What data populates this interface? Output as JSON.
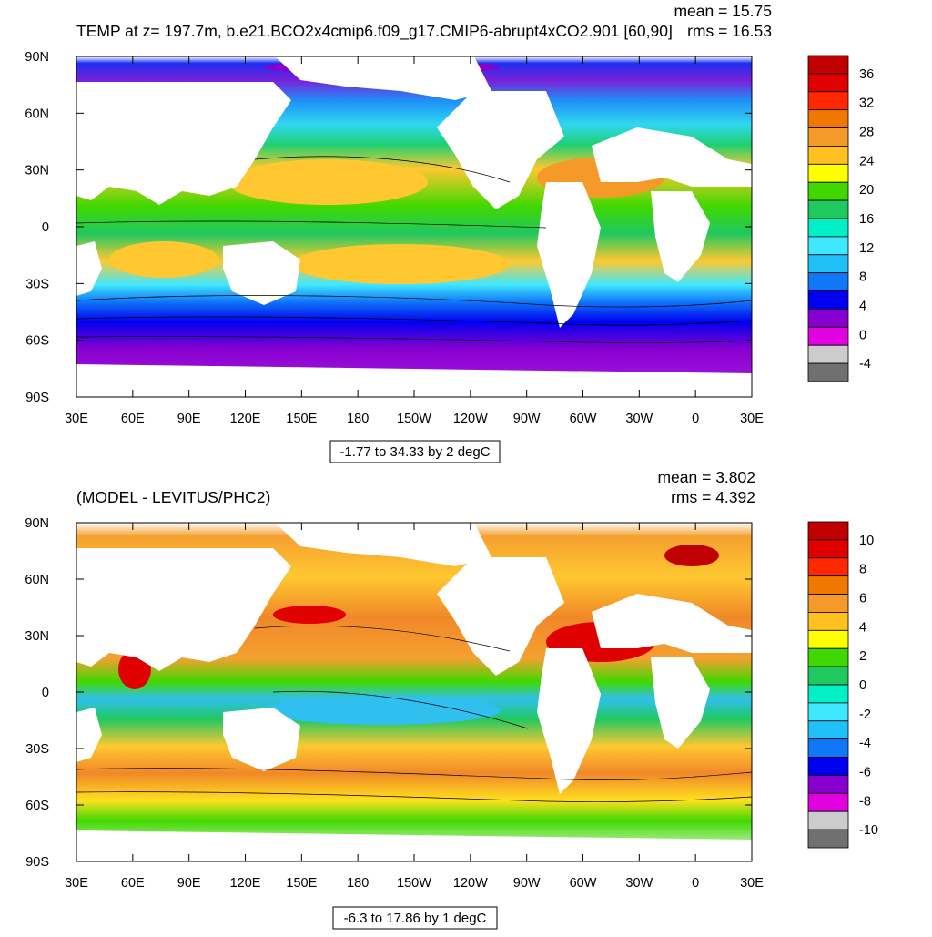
{
  "panels": [
    {
      "title": "TEMP at z= 197.7m, b.e21.BCO2x4cmip6.f09_g17.CMIP6-abrupt4xCO2.901 [60,90]",
      "mean_text": "mean = 15.75",
      "rms_text": "rms = 16.53",
      "contour_info": "-1.77 to 34.33 by 2 degC",
      "colorbar_labels": [
        "36",
        "32",
        "28",
        "24",
        "20",
        "16",
        "12",
        "8",
        "4",
        "0",
        "-4"
      ],
      "colorbar_colors": [
        "#c00000",
        "#e00000",
        "#ff2800",
        "#f07800",
        "#f59a28",
        "#ffc020",
        "#ffff00",
        "#40d800",
        "#20c860",
        "#00f0c8",
        "#40e8ff",
        "#20c0f8",
        "#1078f8",
        "#0000f0",
        "#8800d0",
        "#e000e0",
        "#cccccc",
        "#707070"
      ]
    },
    {
      "title": "(MODEL - LEVITUS/PHC2)",
      "mean_text": "mean = 3.802",
      "rms_text": "rms = 4.392",
      "contour_info": "-6.3 to 17.86 by 1 degC",
      "colorbar_labels": [
        "10",
        "8",
        "6",
        "4",
        "2",
        "0",
        "-2",
        "-4",
        "-6",
        "-8",
        "-10"
      ],
      "colorbar_colors": [
        "#c00000",
        "#e00000",
        "#ff2800",
        "#f07800",
        "#f59a28",
        "#ffc020",
        "#ffff00",
        "#40d800",
        "#20c860",
        "#00f0c8",
        "#40e8ff",
        "#20c0f8",
        "#1078f8",
        "#0000f0",
        "#8800d0",
        "#e000e0",
        "#cccccc",
        "#707070"
      ]
    }
  ],
  "axes": {
    "lat_labels": [
      "90N",
      "60N",
      "30N",
      "0",
      "30S",
      "60S",
      "90S"
    ],
    "lon_labels": [
      "30E",
      "60E",
      "90E",
      "120E",
      "150E",
      "180",
      "150W",
      "120W",
      "90W",
      "60W",
      "30W",
      "0",
      "30E"
    ]
  },
  "chart_data": [
    {
      "type": "heatmap",
      "title": "TEMP at z= 197.7m, b.e21.BCO2x4cmip6.f09_g17.CMIP6-abrupt4xCO2.901 [60,90]",
      "x_ticks": [
        "30E",
        "60E",
        "90E",
        "120E",
        "150E",
        "180",
        "150W",
        "120W",
        "90W",
        "60W",
        "30W",
        "0",
        "30E"
      ],
      "y_ticks": [
        "90N",
        "60N",
        "30N",
        "0",
        "30S",
        "60S",
        "90S"
      ],
      "colorbar_levels": [
        -4,
        0,
        4,
        8,
        12,
        16,
        20,
        24,
        28,
        32,
        36
      ],
      "mean": 15.75,
      "rms": 16.53,
      "contour_min": -1.77,
      "contour_max": 34.33,
      "contour_interval": 2,
      "units": "degC"
    },
    {
      "type": "heatmap",
      "title": "(MODEL - LEVITUS/PHC2)",
      "x_ticks": [
        "30E",
        "60E",
        "90E",
        "120E",
        "150E",
        "180",
        "150W",
        "120W",
        "90W",
        "60W",
        "30W",
        "0",
        "30E"
      ],
      "y_ticks": [
        "90N",
        "60N",
        "30N",
        "0",
        "30S",
        "60S",
        "90S"
      ],
      "colorbar_levels": [
        -10,
        -8,
        -6,
        -4,
        -2,
        0,
        2,
        4,
        6,
        8,
        10
      ],
      "mean": 3.802,
      "rms": 4.392,
      "contour_min": -6.3,
      "contour_max": 17.86,
      "contour_interval": 1,
      "units": "degC"
    }
  ]
}
